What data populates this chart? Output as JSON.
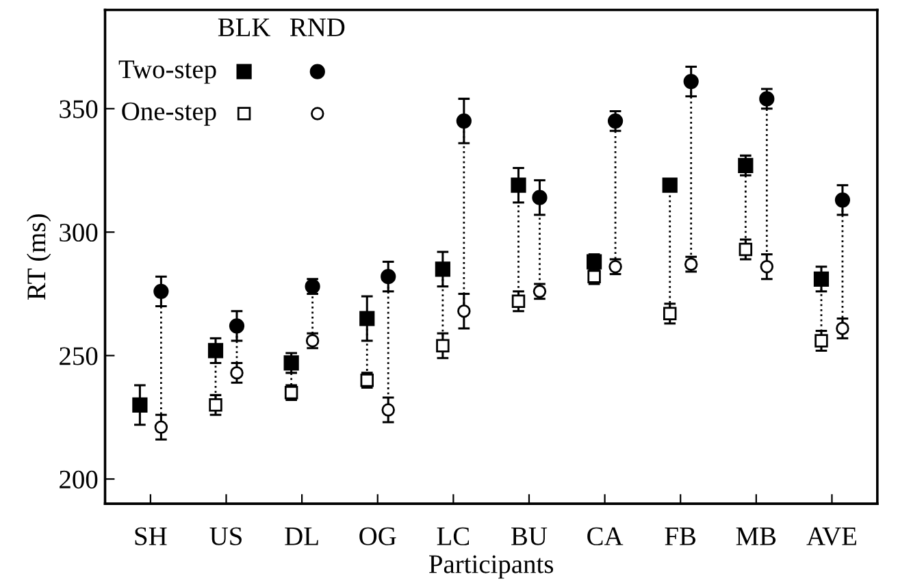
{
  "chart_data": {
    "type": "scatter",
    "xlabel": "Participants",
    "ylabel": "RT (ms)",
    "annotations": [
      "BLK",
      "RND"
    ],
    "categories": [
      "SH",
      "US",
      "DL",
      "OG",
      "LC",
      "BU",
      "CA",
      "FB",
      "MB",
      "AVE"
    ],
    "ylim": [
      190,
      390
    ],
    "yticks": [
      200,
      250,
      300,
      350
    ],
    "grid": false,
    "legend": "top left",
    "line_style": "dotted",
    "series": [
      {
        "name": "Two-step",
        "marker": "square",
        "color": "#000000",
        "values": [
          230,
          252,
          247,
          265,
          285,
          319,
          288,
          319,
          327,
          281
        ],
        "errors": [
          8,
          5,
          4,
          9,
          7,
          7,
          3,
          2,
          4,
          5
        ]
      },
      {
        "marker": "circle",
        "color": "#000000",
        "values": [
          276,
          262,
          278,
          282,
          345,
          314,
          345,
          361,
          354,
          313
        ],
        "errors": [
          6,
          6,
          3,
          6,
          9,
          7,
          4,
          6,
          4,
          6
        ]
      },
      {
        "name": "One-step",
        "marker": "square",
        "color": "#ffffff",
        "values": [
          null,
          230,
          235,
          240,
          254,
          272,
          282,
          267,
          293,
          256
        ],
        "errors": [
          null,
          4,
          3,
          3,
          5,
          4,
          3,
          4,
          4,
          4
        ]
      },
      {
        "marker": "circle",
        "color": "#ffffff",
        "values": [
          221,
          243,
          256,
          228,
          268,
          276,
          286,
          287,
          286,
          261
        ],
        "errors": [
          5,
          4,
          3,
          5,
          7,
          3,
          3,
          3,
          5,
          4
        ]
      }
    ]
  }
}
